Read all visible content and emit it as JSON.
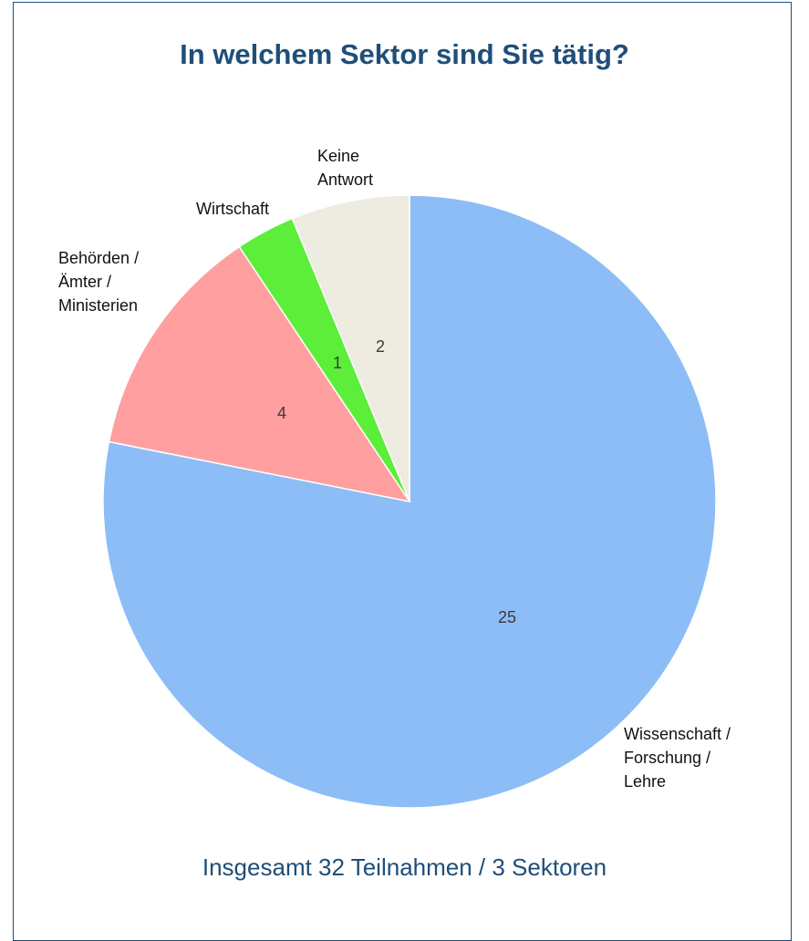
{
  "chart_data": {
    "type": "pie",
    "title": "In welchem Sektor sind Sie tätig?",
    "footer": "Insgesamt 32 Teilnahmen / 3 Sektoren",
    "slices": [
      {
        "label": [
          "Wissenschaft /",
          "Forschung /",
          "Lehre"
        ],
        "value": 25,
        "color": "#8dbdf6"
      },
      {
        "label": [
          "Behörden /",
          "Ämter /",
          "Ministerien"
        ],
        "value": 4,
        "color": "#ff9f9f"
      },
      {
        "label": [
          "Wirtschaft"
        ],
        "value": 1,
        "color": "#5cee39"
      },
      {
        "label": [
          "Keine",
          "Antwort"
        ],
        "value": 2,
        "color": "#eeebe1"
      }
    ]
  }
}
